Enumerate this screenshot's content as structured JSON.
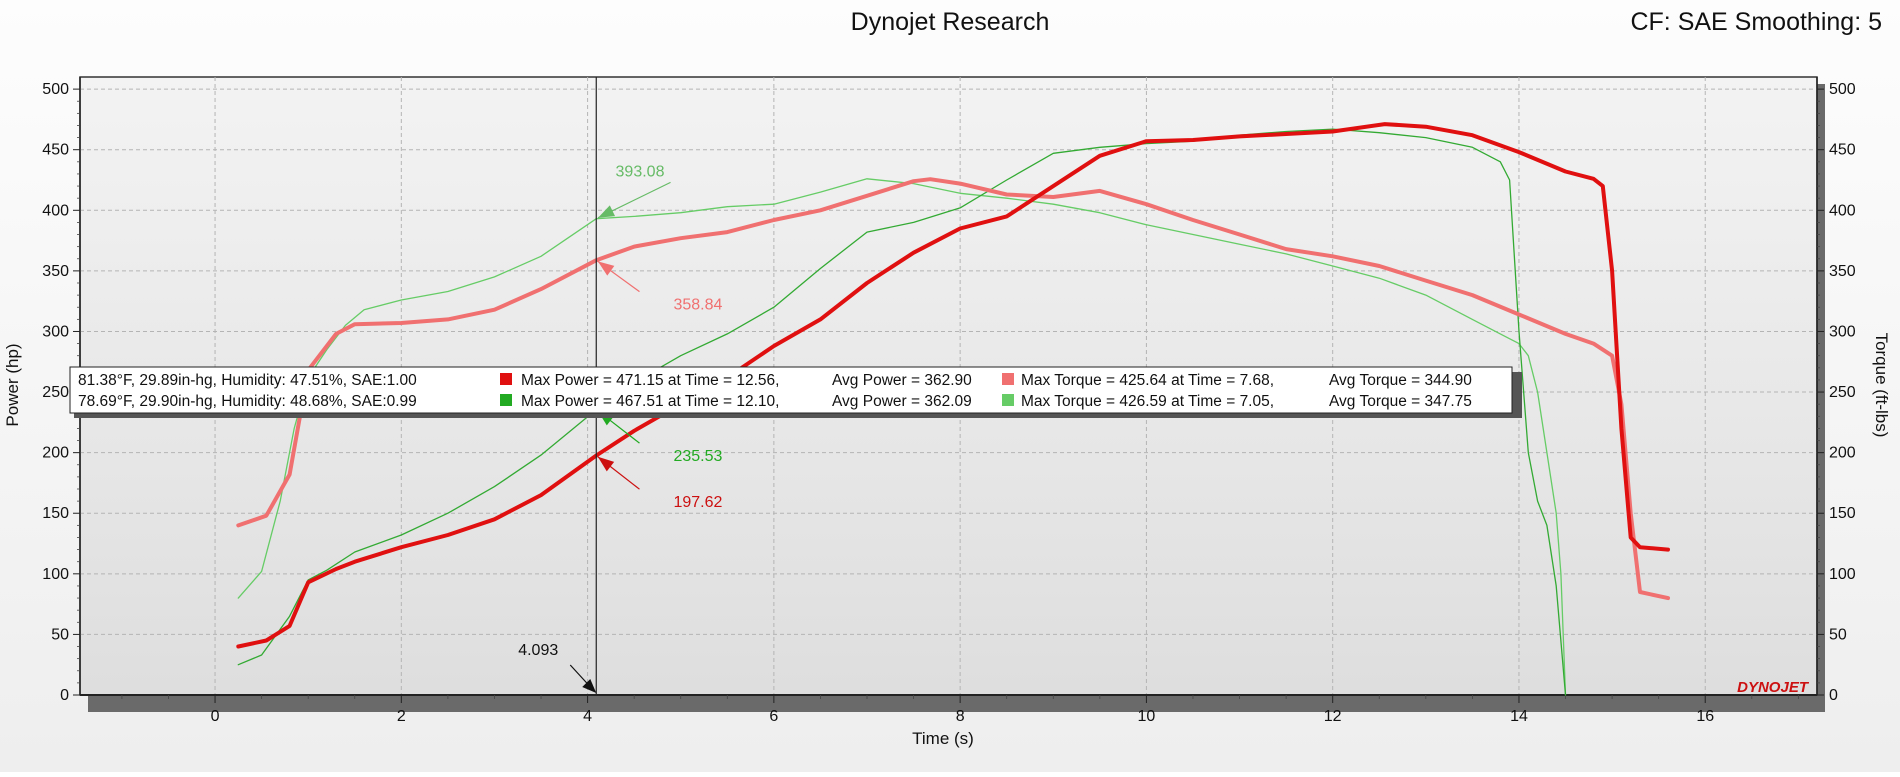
{
  "header": {
    "title": "Dynojet Research",
    "cf": "CF: SAE Smoothing: 5"
  },
  "colors": {
    "run1": "#e01010",
    "run1_light": "#f07070",
    "run2": "#22aa22",
    "run2_light": "#66cc66"
  },
  "legend": {
    "rows": [
      {
        "conditions": "81.38°F, 29.89in-hg, Humidity: 47.51%, SAE:1.00",
        "max_power": "Max Power = 471.15 at Time = 12.56,",
        "avg_power": "Avg Power = 362.90",
        "max_torque": "Max Torque = 425.64 at Time = 7.68,",
        "avg_torque": "Avg Torque = 344.90"
      },
      {
        "conditions": "78.69°F, 29.90in-hg, Humidity: 48.68%, SAE:0.99",
        "max_power": "Max Power = 467.51 at Time = 12.10,",
        "avg_power": "Avg Power = 362.09",
        "max_torque": "Max Torque = 426.59 at Time = 7.05,",
        "avg_torque": "Avg Torque = 347.75"
      }
    ]
  },
  "cursor": {
    "time": 4.093,
    "label": "4.093"
  },
  "annotations": [
    {
      "label": "393.08",
      "series": "run2_torque",
      "value": 393.08,
      "text_x": 4.3,
      "text_y": 428,
      "color": "#66bb66"
    },
    {
      "label": "358.84",
      "series": "run1_torque",
      "value": 358.84,
      "text_x": 4.6,
      "text_y": 318,
      "color": "#f07070"
    },
    {
      "label": "235.53",
      "series": "run2_power",
      "value": 235.53,
      "text_x": 4.6,
      "text_y": 193,
      "color": "#22aa22"
    },
    {
      "label": "197.62",
      "series": "run1_power",
      "value": 197.62,
      "text_x": 4.6,
      "text_y": 155,
      "color": "#cc1010"
    }
  ],
  "logo": "DYNOJET",
  "chart_data": {
    "type": "line",
    "xlabel": "Time (s)",
    "ylabel": "Power (hp)",
    "y2label": "Torque (ft-lbs)",
    "xlim": [
      -1.45,
      17.2
    ],
    "ylim": [
      0,
      510
    ],
    "x_ticks": [
      0,
      2,
      4,
      6,
      8,
      10,
      12,
      14,
      16
    ],
    "y_ticks": [
      0,
      50,
      100,
      150,
      200,
      250,
      300,
      350,
      400,
      450,
      500
    ],
    "grid": true,
    "series": [
      {
        "id": "run2_torque",
        "color": "#66cc66",
        "width": 1.3,
        "points": [
          [
            0.25,
            80
          ],
          [
            0.5,
            102
          ],
          [
            0.7,
            160
          ],
          [
            0.85,
            220
          ],
          [
            1.0,
            262
          ],
          [
            1.2,
            285
          ],
          [
            1.4,
            305
          ],
          [
            1.6,
            318
          ],
          [
            2.0,
            326
          ],
          [
            2.5,
            333
          ],
          [
            3.0,
            345
          ],
          [
            3.5,
            362
          ],
          [
            4.093,
            393.08
          ],
          [
            4.5,
            395
          ],
          [
            5.0,
            398
          ],
          [
            5.5,
            403
          ],
          [
            6.0,
            405
          ],
          [
            6.5,
            415
          ],
          [
            7.0,
            426
          ],
          [
            7.5,
            422
          ],
          [
            8.0,
            414
          ],
          [
            8.5,
            410
          ],
          [
            9.0,
            405
          ],
          [
            9.5,
            398
          ],
          [
            10.0,
            388
          ],
          [
            10.5,
            380
          ],
          [
            11.0,
            372
          ],
          [
            11.5,
            364
          ],
          [
            12.0,
            354
          ],
          [
            12.5,
            344
          ],
          [
            13.0,
            330
          ],
          [
            13.5,
            310
          ],
          [
            13.8,
            298
          ],
          [
            14.0,
            290
          ],
          [
            14.1,
            280
          ],
          [
            14.2,
            250
          ],
          [
            14.3,
            200
          ],
          [
            14.4,
            150
          ],
          [
            14.45,
            100
          ],
          [
            14.5,
            0
          ]
        ]
      },
      {
        "id": "run2_power",
        "color": "#33aa33",
        "width": 1.3,
        "points": [
          [
            0.25,
            25
          ],
          [
            0.5,
            33
          ],
          [
            0.8,
            65
          ],
          [
            1.0,
            95
          ],
          [
            1.2,
            103
          ],
          [
            1.5,
            118
          ],
          [
            2.0,
            132
          ],
          [
            2.5,
            150
          ],
          [
            3.0,
            172
          ],
          [
            3.5,
            198
          ],
          [
            4.093,
            235.53
          ],
          [
            4.5,
            258
          ],
          [
            5.0,
            280
          ],
          [
            5.5,
            298
          ],
          [
            6.0,
            320
          ],
          [
            6.5,
            352
          ],
          [
            7.0,
            382
          ],
          [
            7.5,
            390
          ],
          [
            8.0,
            402
          ],
          [
            8.5,
            425
          ],
          [
            9.0,
            447
          ],
          [
            9.5,
            452
          ],
          [
            10.0,
            455
          ],
          [
            10.5,
            457
          ],
          [
            11.0,
            462
          ],
          [
            11.5,
            465
          ],
          [
            12.0,
            467
          ],
          [
            12.5,
            464
          ],
          [
            13.0,
            460
          ],
          [
            13.5,
            452
          ],
          [
            13.8,
            440
          ],
          [
            13.9,
            425
          ],
          [
            14.0,
            300
          ],
          [
            14.1,
            200
          ],
          [
            14.2,
            160
          ],
          [
            14.3,
            140
          ],
          [
            14.4,
            90
          ],
          [
            14.5,
            0
          ]
        ]
      },
      {
        "id": "run1_torque",
        "color": "#f07070",
        "width": 4,
        "points": [
          [
            0.25,
            140
          ],
          [
            0.55,
            148
          ],
          [
            0.8,
            182
          ],
          [
            1.0,
            268
          ],
          [
            1.3,
            298
          ],
          [
            1.5,
            306
          ],
          [
            2.0,
            307
          ],
          [
            2.5,
            310
          ],
          [
            3.0,
            318
          ],
          [
            3.5,
            335
          ],
          [
            4.093,
            358.84
          ],
          [
            4.5,
            370
          ],
          [
            5.0,
            377
          ],
          [
            5.5,
            382
          ],
          [
            6.0,
            392
          ],
          [
            6.5,
            400
          ],
          [
            7.0,
            412
          ],
          [
            7.5,
            424
          ],
          [
            7.68,
            425.64
          ],
          [
            8.0,
            422
          ],
          [
            8.5,
            413
          ],
          [
            9.0,
            411
          ],
          [
            9.5,
            416
          ],
          [
            10.0,
            405
          ],
          [
            10.5,
            392
          ],
          [
            11.0,
            380
          ],
          [
            11.5,
            368
          ],
          [
            12.0,
            362
          ],
          [
            12.5,
            354
          ],
          [
            13.0,
            342
          ],
          [
            13.5,
            330
          ],
          [
            14.0,
            314
          ],
          [
            14.5,
            298
          ],
          [
            14.8,
            290
          ],
          [
            15.0,
            280
          ],
          [
            15.1,
            240
          ],
          [
            15.2,
            150
          ],
          [
            15.3,
            85
          ],
          [
            15.6,
            80
          ]
        ]
      },
      {
        "id": "run1_power",
        "color": "#e01010",
        "width": 4,
        "points": [
          [
            0.25,
            40
          ],
          [
            0.55,
            45
          ],
          [
            0.8,
            57
          ],
          [
            1.0,
            93
          ],
          [
            1.3,
            104
          ],
          [
            1.5,
            110
          ],
          [
            2.0,
            122
          ],
          [
            2.5,
            132
          ],
          [
            3.0,
            145
          ],
          [
            3.5,
            165
          ],
          [
            4.093,
            197.62
          ],
          [
            4.5,
            218
          ],
          [
            5.0,
            240
          ],
          [
            5.5,
            262
          ],
          [
            6.0,
            288
          ],
          [
            6.5,
            310
          ],
          [
            7.0,
            340
          ],
          [
            7.5,
            365
          ],
          [
            8.0,
            385
          ],
          [
            8.5,
            395
          ],
          [
            9.0,
            420
          ],
          [
            9.5,
            445
          ],
          [
            10.0,
            457
          ],
          [
            10.5,
            458
          ],
          [
            11.0,
            461
          ],
          [
            11.5,
            463
          ],
          [
            12.0,
            465
          ],
          [
            12.56,
            471.15
          ],
          [
            13.0,
            469
          ],
          [
            13.5,
            462
          ],
          [
            14.0,
            448
          ],
          [
            14.5,
            432
          ],
          [
            14.8,
            426
          ],
          [
            14.9,
            420
          ],
          [
            15.0,
            350
          ],
          [
            15.1,
            220
          ],
          [
            15.2,
            130
          ],
          [
            15.3,
            122
          ],
          [
            15.6,
            120
          ]
        ]
      }
    ]
  }
}
